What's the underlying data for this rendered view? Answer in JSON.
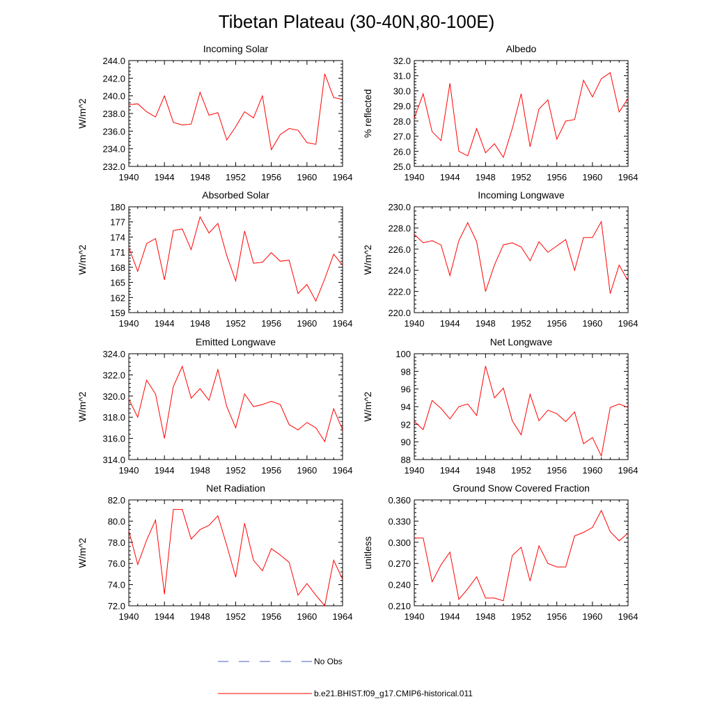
{
  "figure": {
    "title": "Tibetan Plateau (30-40N,80-100E)",
    "legend": {
      "entries": [
        {
          "label": "No Obs",
          "color": "#4a5fc1",
          "style": "dashed"
        },
        {
          "label": "b.e21.BHIST.f09_g17.CMIP6-historical.011",
          "color": "#ff0000",
          "style": "solid"
        }
      ],
      "placement": "bottom-center"
    }
  },
  "chart_data": [
    {
      "type": "line",
      "title": "Incoming Solar",
      "ylabel": "W/m^2",
      "xlabel": "",
      "xlim": [
        1940,
        1964
      ],
      "ylim": [
        232,
        244
      ],
      "xticks": [
        "1940",
        "1944",
        "1948",
        "1952",
        "1956",
        "1960",
        "1964"
      ],
      "yticks": [
        "232.0",
        "234.0",
        "236.0",
        "238.0",
        "240.0",
        "242.0",
        "244.0"
      ],
      "x": [
        1940,
        1941,
        1942,
        1943,
        1944,
        1945,
        1946,
        1947,
        1948,
        1949,
        1950,
        1951,
        1952,
        1953,
        1954,
        1955,
        1956,
        1957,
        1958,
        1959,
        1960,
        1961,
        1962,
        1963,
        1964
      ],
      "values": [
        239.0,
        239.1,
        238.2,
        237.6,
        240.0,
        237.0,
        236.7,
        236.8,
        240.4,
        237.8,
        238.1,
        235.0,
        236.5,
        238.2,
        237.5,
        240.0,
        233.9,
        235.6,
        236.3,
        236.1,
        234.7,
        234.5,
        242.5,
        239.8,
        239.6
      ],
      "color": "#ff0000",
      "grid": false
    },
    {
      "type": "line",
      "title": "Albedo",
      "ylabel": "% reflected",
      "xlabel": "",
      "xlim": [
        1940,
        1964
      ],
      "ylim": [
        25,
        32
      ],
      "xticks": [
        "1940",
        "1944",
        "1948",
        "1952",
        "1956",
        "1960",
        "1964"
      ],
      "yticks": [
        "25.0",
        "26.0",
        "27.0",
        "28.0",
        "29.0",
        "30.0",
        "31.0",
        "32.0"
      ],
      "x": [
        1940,
        1941,
        1942,
        1943,
        1944,
        1945,
        1946,
        1947,
        1948,
        1949,
        1950,
        1951,
        1952,
        1953,
        1954,
        1955,
        1956,
        1957,
        1958,
        1959,
        1960,
        1961,
        1962,
        1963,
        1964
      ],
      "values": [
        28.2,
        29.8,
        27.3,
        26.7,
        30.5,
        26.0,
        25.7,
        27.5,
        25.9,
        26.5,
        25.6,
        27.5,
        29.8,
        26.3,
        28.8,
        29.4,
        26.8,
        28.0,
        28.1,
        30.7,
        29.6,
        30.8,
        31.2,
        28.6,
        29.5
      ],
      "color": "#ff0000",
      "grid": false
    },
    {
      "type": "line",
      "title": "Absorbed Solar",
      "ylabel": "W/m^2",
      "xlabel": "",
      "xlim": [
        1940,
        1964
      ],
      "ylim": [
        159,
        180
      ],
      "xticks": [
        "1940",
        "1944",
        "1948",
        "1952",
        "1956",
        "1960",
        "1964"
      ],
      "yticks": [
        "159",
        "162",
        "165",
        "168",
        "171",
        "174",
        "177",
        "180"
      ],
      "x": [
        1940,
        1941,
        1942,
        1943,
        1944,
        1945,
        1946,
        1947,
        1948,
        1949,
        1950,
        1951,
        1952,
        1953,
        1954,
        1955,
        1956,
        1957,
        1958,
        1959,
        1960,
        1961,
        1962,
        1963,
        1964
      ],
      "values": [
        171.9,
        167.2,
        172.7,
        173.7,
        165.5,
        175.3,
        175.6,
        171.5,
        178.0,
        174.8,
        176.7,
        170.3,
        165.3,
        175.2,
        168.8,
        169.0,
        170.9,
        169.2,
        169.4,
        162.8,
        164.6,
        161.3,
        165.7,
        170.6,
        168.4
      ],
      "color": "#ff0000",
      "grid": false
    },
    {
      "type": "line",
      "title": "Incoming Longwave",
      "ylabel": "W/m^2",
      "xlabel": "",
      "xlim": [
        1940,
        1964
      ],
      "ylim": [
        220,
        230
      ],
      "xticks": [
        "1940",
        "1944",
        "1948",
        "1952",
        "1956",
        "1960",
        "1964"
      ],
      "yticks": [
        "220.0",
        "222.0",
        "224.0",
        "226.0",
        "228.0",
        "230.0"
      ],
      "x": [
        1940,
        1941,
        1942,
        1943,
        1944,
        1945,
        1946,
        1947,
        1948,
        1949,
        1950,
        1951,
        1952,
        1953,
        1954,
        1955,
        1956,
        1957,
        1958,
        1959,
        1960,
        1961,
        1962,
        1963,
        1964
      ],
      "values": [
        227.4,
        226.6,
        226.8,
        226.4,
        223.5,
        226.8,
        228.5,
        226.7,
        222.0,
        224.5,
        226.4,
        226.6,
        226.2,
        224.9,
        226.7,
        225.7,
        226.3,
        226.9,
        224.0,
        227.1,
        227.1,
        228.6,
        221.8,
        224.5,
        223.0
      ],
      "color": "#ff0000",
      "grid": false
    },
    {
      "type": "line",
      "title": "Emitted Longwave",
      "ylabel": "W/m^2",
      "xlabel": "",
      "xlim": [
        1940,
        1964
      ],
      "ylim": [
        314,
        324
      ],
      "xticks": [
        "1940",
        "1944",
        "1948",
        "1952",
        "1956",
        "1960",
        "1964"
      ],
      "yticks": [
        "314.0",
        "316.0",
        "318.0",
        "320.0",
        "322.0",
        "324.0"
      ],
      "x": [
        1940,
        1941,
        1942,
        1943,
        1944,
        1945,
        1946,
        1947,
        1948,
        1949,
        1950,
        1951,
        1952,
        1953,
        1954,
        1955,
        1956,
        1957,
        1958,
        1959,
        1960,
        1961,
        1962,
        1963,
        1964
      ],
      "values": [
        319.7,
        318.0,
        321.5,
        320.2,
        316.0,
        320.9,
        322.8,
        319.8,
        320.7,
        319.6,
        322.5,
        319.0,
        317.0,
        320.2,
        319.0,
        319.2,
        319.5,
        319.2,
        317.3,
        316.8,
        317.5,
        317.0,
        315.7,
        318.8,
        316.8
      ],
      "color": "#ff0000",
      "grid": false
    },
    {
      "type": "line",
      "title": "Net Longwave",
      "ylabel": "W/m^2",
      "xlabel": "",
      "xlim": [
        1940,
        1964
      ],
      "ylim": [
        88,
        100
      ],
      "xticks": [
        "1940",
        "1944",
        "1948",
        "1952",
        "1956",
        "1960",
        "1964"
      ],
      "yticks": [
        "88",
        "90",
        "92",
        "94",
        "96",
        "98",
        "100"
      ],
      "x": [
        1940,
        1941,
        1942,
        1943,
        1944,
        1945,
        1946,
        1947,
        1948,
        1949,
        1950,
        1951,
        1952,
        1953,
        1954,
        1955,
        1956,
        1957,
        1958,
        1959,
        1960,
        1961,
        1962,
        1963,
        1964
      ],
      "values": [
        92.3,
        91.4,
        94.7,
        93.8,
        92.6,
        94.0,
        94.3,
        93.0,
        98.6,
        95.0,
        96.1,
        92.4,
        90.8,
        95.4,
        92.4,
        93.6,
        93.2,
        92.3,
        93.4,
        89.8,
        90.5,
        88.4,
        93.9,
        94.3,
        93.9
      ],
      "color": "#ff0000",
      "grid": false
    },
    {
      "type": "line",
      "title": "Net Radiation",
      "ylabel": "W/m^2",
      "xlabel": "",
      "xlim": [
        1940,
        1964
      ],
      "ylim": [
        72,
        82
      ],
      "xticks": [
        "1940",
        "1944",
        "1948",
        "1952",
        "1956",
        "1960",
        "1964"
      ],
      "yticks": [
        "72.0",
        "74.0",
        "76.0",
        "78.0",
        "80.0",
        "82.0"
      ],
      "x": [
        1940,
        1941,
        1942,
        1943,
        1944,
        1945,
        1946,
        1947,
        1948,
        1949,
        1950,
        1951,
        1952,
        1953,
        1954,
        1955,
        1956,
        1957,
        1958,
        1959,
        1960,
        1961,
        1962,
        1963,
        1964
      ],
      "values": [
        79.1,
        75.9,
        78.2,
        80.1,
        73.1,
        81.1,
        81.1,
        78.3,
        79.2,
        79.6,
        80.5,
        77.7,
        74.7,
        79.8,
        76.3,
        75.3,
        77.4,
        76.8,
        76.1,
        73.0,
        74.1,
        73.0,
        72.0,
        76.3,
        74.5
      ],
      "color": "#ff0000",
      "grid": false
    },
    {
      "type": "line",
      "title": "Ground Snow Covered Fraction",
      "ylabel": "unitless",
      "xlabel": "",
      "xlim": [
        1940,
        1964
      ],
      "ylim": [
        0.21,
        0.36
      ],
      "xticks": [
        "1940",
        "1944",
        "1948",
        "1952",
        "1956",
        "1960",
        "1964"
      ],
      "yticks": [
        "0.210",
        "0.240",
        "0.270",
        "0.300",
        "0.330",
        "0.360"
      ],
      "x": [
        1940,
        1941,
        1942,
        1943,
        1944,
        1945,
        1946,
        1947,
        1948,
        1949,
        1950,
        1951,
        1952,
        1953,
        1954,
        1955,
        1956,
        1957,
        1958,
        1959,
        1960,
        1961,
        1962,
        1963,
        1964
      ],
      "values": [
        0.306,
        0.306,
        0.244,
        0.268,
        0.286,
        0.219,
        0.234,
        0.251,
        0.221,
        0.221,
        0.217,
        0.281,
        0.293,
        0.245,
        0.295,
        0.27,
        0.265,
        0.265,
        0.309,
        0.314,
        0.321,
        0.345,
        0.315,
        0.302,
        0.313
      ],
      "color": "#ff0000",
      "grid": false
    }
  ]
}
